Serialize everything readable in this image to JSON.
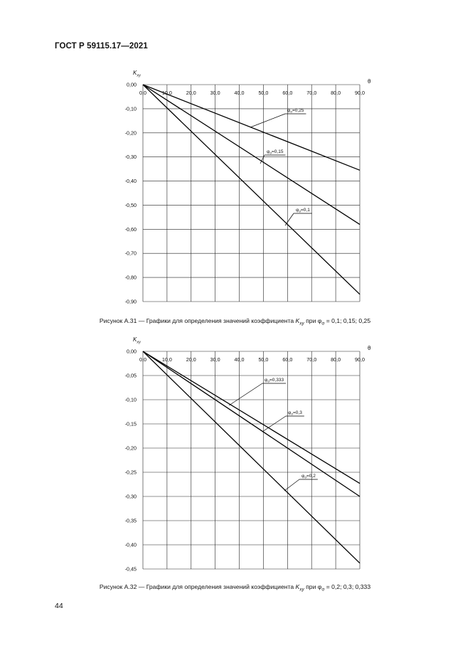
{
  "header": {
    "doc_id": "ГОСТ Р 59115.17—2021"
  },
  "page_number": "44",
  "figures": [
    {
      "caption": {
        "prefix": "Рисунок А.31 — Графики для определения значений коэффициента ",
        "k": "K",
        "k_sub": "xy",
        "mid": " при ",
        "phi": "φ",
        "phi_sub": "σ",
        "values": " = 0,1; 0,15; 0,25"
      }
    },
    {
      "caption": {
        "prefix": "Рисунок А.32 — Графики для определения значений коэффициента ",
        "k": "K",
        "k_sub": "xy",
        "mid": " при ",
        "phi": "φ",
        "phi_sub": "σ",
        "values": " = 0,2; 0,3; 0,333"
      }
    }
  ],
  "chart_data": [
    {
      "type": "line",
      "ylabel": "K",
      "ylabel_sub": "xy",
      "xlabel": "θ",
      "xlim": [
        0,
        90
      ],
      "ylim": [
        -0.9,
        0
      ],
      "grid": true,
      "x_ticks": [
        "0,0",
        "10,0",
        "20,0",
        "30,0",
        "40,0",
        "50,0",
        "60,0",
        "70,0",
        "80,0",
        "90,0"
      ],
      "y_ticks": [
        "0,00",
        "-0,10",
        "-0,20",
        "-0,30",
        "-0,40",
        "-0,50",
        "-0,60",
        "-0,70",
        "-0,80",
        "-0,90"
      ],
      "series": [
        {
          "name": "φσ=0,25",
          "label": "φ",
          "label_sub": "σ",
          "label_val": "=0,25",
          "x": [
            0,
            90
          ],
          "y": [
            0,
            -0.355
          ]
        },
        {
          "name": "φσ=0,15",
          "label": "φ",
          "label_sub": "σ",
          "label_val": "=0,15",
          "x": [
            0,
            90
          ],
          "y": [
            0,
            -0.58
          ]
        },
        {
          "name": "φσ=0,1",
          "label": "φ",
          "label_sub": "σ",
          "label_val": "=0,1",
          "x": [
            0,
            90
          ],
          "y": [
            0,
            -0.87
          ]
        }
      ]
    },
    {
      "type": "line",
      "ylabel": "K",
      "ylabel_sub": "xy",
      "xlabel": "θ",
      "xlim": [
        0,
        90
      ],
      "ylim": [
        -0.45,
        0
      ],
      "grid": true,
      "x_ticks": [
        "0,0",
        "10,0",
        "20,0",
        "30,0",
        "40,0",
        "50,0",
        "60,0",
        "70,0",
        "80,0",
        "90,0"
      ],
      "y_ticks": [
        "0,00",
        "-0,05",
        "-0,10",
        "-0,15",
        "-0,20",
        "-0,25",
        "-0,30",
        "-0,35",
        "-0,40",
        "-0,45"
      ],
      "series": [
        {
          "name": "φσ=0,333",
          "label": "φ",
          "label_sub": "σ",
          "label_val": "=0,333",
          "x": [
            0,
            90
          ],
          "y": [
            0,
            -0.273
          ]
        },
        {
          "name": "φσ=0,3",
          "label": "φ",
          "label_sub": "σ",
          "label_val": "=0,3",
          "x": [
            0,
            90
          ],
          "y": [
            0,
            -0.3
          ]
        },
        {
          "name": "φσ=0,2",
          "label": "φ",
          "label_sub": "σ",
          "label_val": "=0,2",
          "x": [
            0,
            90
          ],
          "y": [
            0,
            -0.438
          ]
        }
      ]
    }
  ]
}
